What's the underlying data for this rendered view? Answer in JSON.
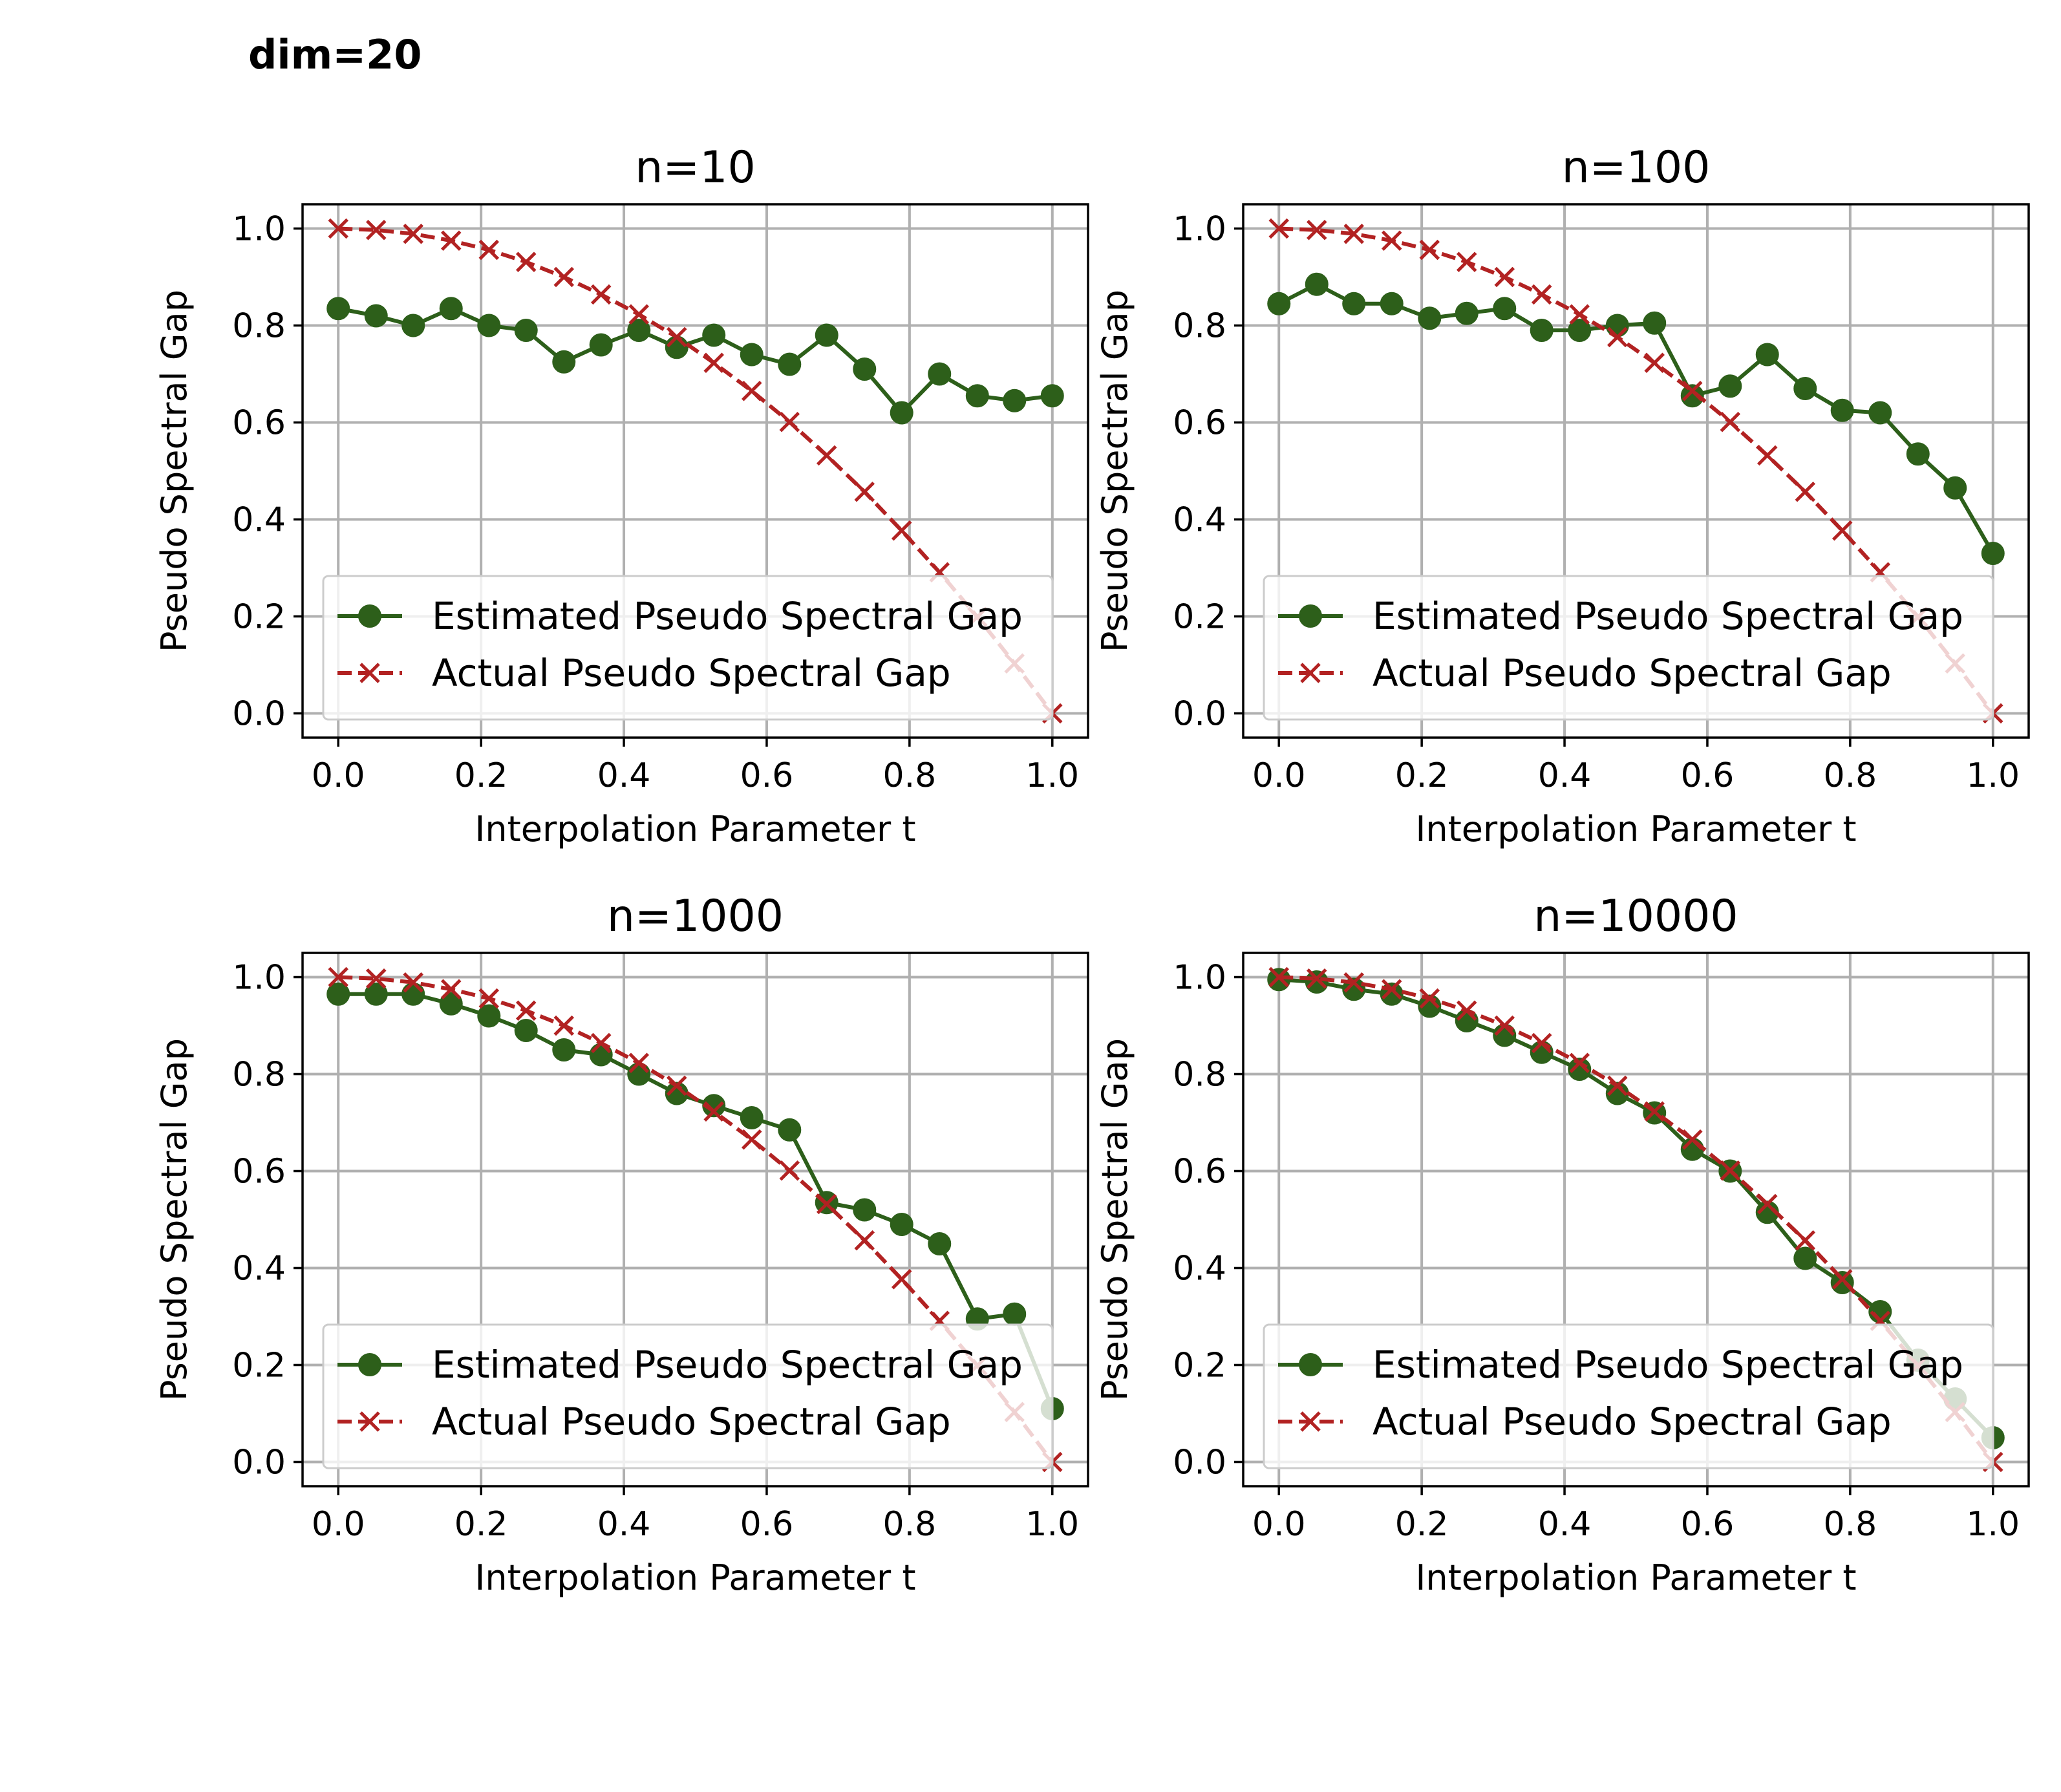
{
  "figure_title": "dim=20",
  "colors": {
    "estimated": "#2d5f1a",
    "actual": "#b22222"
  },
  "chart_data": [
    {
      "type": "line",
      "title": "n=10",
      "xlabel": "Interpolation Parameter t",
      "ylabel": "Pseudo Spectral Gap",
      "xlim": [
        -0.05,
        1.05
      ],
      "ylim": [
        -0.05,
        1.05
      ],
      "xticks": [
        "0.0",
        "0.2",
        "0.4",
        "0.6",
        "0.8",
        "1.0"
      ],
      "yticks": [
        "0.0",
        "0.2",
        "0.4",
        "0.6",
        "0.8",
        "1.0"
      ],
      "grid": true,
      "legend": "lower-left",
      "x": [
        0.0,
        0.053,
        0.105,
        0.158,
        0.211,
        0.263,
        0.316,
        0.368,
        0.421,
        0.474,
        0.526,
        0.579,
        0.632,
        0.684,
        0.737,
        0.789,
        0.842,
        0.895,
        0.947,
        1.0
      ],
      "series": [
        {
          "name": "Estimated Pseudo Spectral Gap",
          "marker": "circle",
          "values": [
            0.835,
            0.82,
            0.8,
            0.835,
            0.8,
            0.79,
            0.725,
            0.76,
            0.79,
            0.755,
            0.78,
            0.74,
            0.72,
            0.78,
            0.71,
            0.62,
            0.7,
            0.655,
            0.645,
            0.655
          ]
        },
        {
          "name": "Actual Pseudo Spectral Gap",
          "marker": "x",
          "dashed": true,
          "values": [
            1.0,
            0.997,
            0.989,
            0.975,
            0.956,
            0.931,
            0.9,
            0.864,
            0.823,
            0.776,
            0.723,
            0.665,
            0.601,
            0.532,
            0.457,
            0.377,
            0.291,
            0.199,
            0.103,
            0.0
          ]
        }
      ]
    },
    {
      "type": "line",
      "title": "n=100",
      "xlabel": "Interpolation Parameter t",
      "ylabel": "Pseudo Spectral Gap",
      "xlim": [
        -0.05,
        1.05
      ],
      "ylim": [
        -0.05,
        1.05
      ],
      "xticks": [
        "0.0",
        "0.2",
        "0.4",
        "0.6",
        "0.8",
        "1.0"
      ],
      "yticks": [
        "0.0",
        "0.2",
        "0.4",
        "0.6",
        "0.8",
        "1.0"
      ],
      "grid": true,
      "legend": "lower-left",
      "x": [
        0.0,
        0.053,
        0.105,
        0.158,
        0.211,
        0.263,
        0.316,
        0.368,
        0.421,
        0.474,
        0.526,
        0.579,
        0.632,
        0.684,
        0.737,
        0.789,
        0.842,
        0.895,
        0.947,
        1.0
      ],
      "series": [
        {
          "name": "Estimated Pseudo Spectral Gap",
          "marker": "circle",
          "values": [
            0.845,
            0.885,
            0.845,
            0.845,
            0.815,
            0.825,
            0.835,
            0.79,
            0.79,
            0.8,
            0.805,
            0.655,
            0.675,
            0.74,
            0.67,
            0.625,
            0.62,
            0.535,
            0.465,
            0.33
          ]
        },
        {
          "name": "Actual Pseudo Spectral Gap",
          "marker": "x",
          "dashed": true,
          "values": [
            1.0,
            0.997,
            0.989,
            0.975,
            0.956,
            0.931,
            0.9,
            0.864,
            0.823,
            0.776,
            0.723,
            0.665,
            0.601,
            0.532,
            0.457,
            0.377,
            0.291,
            0.199,
            0.103,
            0.0
          ]
        }
      ]
    },
    {
      "type": "line",
      "title": "n=1000",
      "xlabel": "Interpolation Parameter t",
      "ylabel": "Pseudo Spectral Gap",
      "xlim": [
        -0.05,
        1.05
      ],
      "ylim": [
        -0.05,
        1.05
      ],
      "xticks": [
        "0.0",
        "0.2",
        "0.4",
        "0.6",
        "0.8",
        "1.0"
      ],
      "yticks": [
        "0.0",
        "0.2",
        "0.4",
        "0.6",
        "0.8",
        "1.0"
      ],
      "grid": true,
      "legend": "lower-left",
      "x": [
        0.0,
        0.053,
        0.105,
        0.158,
        0.211,
        0.263,
        0.316,
        0.368,
        0.421,
        0.474,
        0.526,
        0.579,
        0.632,
        0.684,
        0.737,
        0.789,
        0.842,
        0.895,
        0.947,
        1.0
      ],
      "series": [
        {
          "name": "Estimated Pseudo Spectral Gap",
          "marker": "circle",
          "values": [
            0.965,
            0.965,
            0.965,
            0.945,
            0.92,
            0.89,
            0.85,
            0.84,
            0.8,
            0.76,
            0.735,
            0.71,
            0.685,
            0.535,
            0.52,
            0.49,
            0.45,
            0.295,
            0.305,
            0.11
          ]
        },
        {
          "name": "Actual Pseudo Spectral Gap",
          "marker": "x",
          "dashed": true,
          "values": [
            1.0,
            0.997,
            0.989,
            0.975,
            0.956,
            0.931,
            0.9,
            0.864,
            0.823,
            0.776,
            0.723,
            0.665,
            0.601,
            0.532,
            0.457,
            0.377,
            0.291,
            0.199,
            0.103,
            0.0
          ]
        }
      ]
    },
    {
      "type": "line",
      "title": "n=10000",
      "xlabel": "Interpolation Parameter t",
      "ylabel": "Pseudo Spectral Gap",
      "xlim": [
        -0.05,
        1.05
      ],
      "ylim": [
        -0.05,
        1.05
      ],
      "xticks": [
        "0.0",
        "0.2",
        "0.4",
        "0.6",
        "0.8",
        "1.0"
      ],
      "yticks": [
        "0.0",
        "0.2",
        "0.4",
        "0.6",
        "0.8",
        "1.0"
      ],
      "grid": true,
      "legend": "lower-left",
      "x": [
        0.0,
        0.053,
        0.105,
        0.158,
        0.211,
        0.263,
        0.316,
        0.368,
        0.421,
        0.474,
        0.526,
        0.579,
        0.632,
        0.684,
        0.737,
        0.789,
        0.842,
        0.895,
        0.947,
        1.0
      ],
      "series": [
        {
          "name": "Estimated Pseudo Spectral Gap",
          "marker": "circle",
          "values": [
            0.995,
            0.99,
            0.975,
            0.965,
            0.94,
            0.91,
            0.88,
            0.845,
            0.81,
            0.76,
            0.72,
            0.645,
            0.6,
            0.515,
            0.42,
            0.37,
            0.31,
            0.21,
            0.13,
            0.05
          ]
        },
        {
          "name": "Actual Pseudo Spectral Gap",
          "marker": "x",
          "dashed": true,
          "values": [
            1.0,
            0.997,
            0.989,
            0.975,
            0.956,
            0.931,
            0.9,
            0.864,
            0.823,
            0.776,
            0.723,
            0.665,
            0.601,
            0.532,
            0.457,
            0.377,
            0.291,
            0.199,
            0.103,
            0.0
          ]
        }
      ]
    }
  ]
}
